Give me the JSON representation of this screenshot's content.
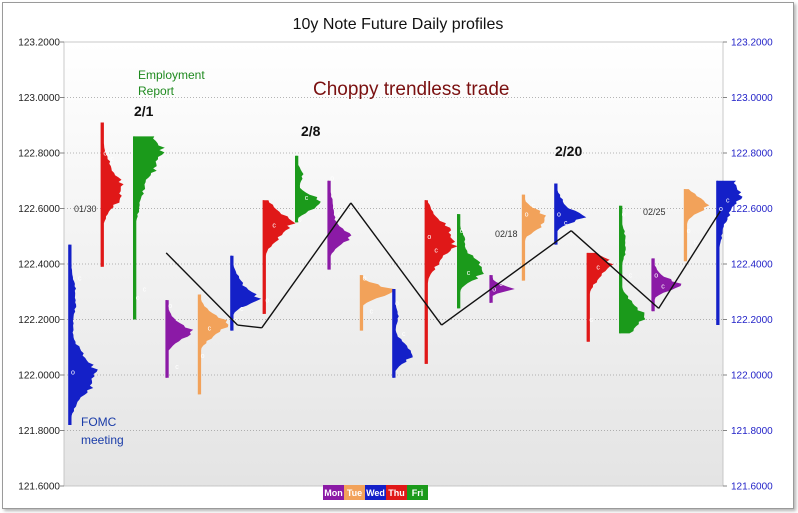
{
  "chart_data": {
    "type": "market-profile",
    "title": "10y Note Future Daily profiles",
    "ylim": [
      121.6,
      123.2
    ],
    "yticks": [
      "123.2000",
      "123.0000",
      "122.8000",
      "122.6000",
      "122.4000",
      "122.2000",
      "122.0000",
      "121.8000",
      "121.6000"
    ],
    "grid": true,
    "legend": {
      "placement": "bottom-center",
      "items": [
        {
          "label": "Mon",
          "color": "#8b1aa6"
        },
        {
          "label": "Tue",
          "color": "#f2a25a"
        },
        {
          "label": "Wed",
          "color": "#1420c8"
        },
        {
          "label": "Thu",
          "color": "#e01818"
        },
        {
          "label": "Fri",
          "color": "#1b9a1b"
        }
      ]
    },
    "profiles": [
      {
        "day": "Wed",
        "low": 121.82,
        "high": 122.47,
        "poc": 122.0,
        "width": 0.95,
        "open": 122.01,
        "close": 122.35
      },
      {
        "day": "Thu",
        "low": 122.39,
        "high": 122.91,
        "poc": 122.66,
        "width": 0.7,
        "open": 122.8,
        "close": 122.78
      },
      {
        "day": "Fri",
        "low": 122.2,
        "high": 122.86,
        "poc": 122.81,
        "width": 0.95,
        "open": 122.28,
        "close": 122.31
      },
      {
        "day": "Mon",
        "low": 121.99,
        "high": 122.27,
        "poc": 122.15,
        "width": 0.75,
        "open": 122.25,
        "close": 122.03
      },
      {
        "day": "Tue",
        "low": 121.93,
        "high": 122.29,
        "poc": 122.18,
        "width": 0.8,
        "open": 122.07,
        "close": 122.17
      },
      {
        "day": "Wed",
        "low": 122.16,
        "high": 122.43,
        "poc": 122.28,
        "width": 0.95,
        "open": 122.2,
        "close": 122.24
      },
      {
        "day": "Thu",
        "low": 122.22,
        "high": 122.63,
        "poc": 122.55,
        "width": 0.85,
        "open": 122.27,
        "close": 122.54
      },
      {
        "day": "Fri",
        "low": 122.55,
        "high": 122.79,
        "poc": 122.62,
        "width": 0.95,
        "open": 122.56,
        "close": 122.64
      },
      {
        "day": "Mon",
        "low": 122.38,
        "high": 122.7,
        "poc": 122.5,
        "width": 0.75,
        "open": 122.71,
        "close": 122.58
      },
      {
        "day": "Tue",
        "low": 122.16,
        "high": 122.36,
        "poc": 122.3,
        "width": 0.95,
        "open": 122.35,
        "close": 122.23
      },
      {
        "day": "Wed",
        "low": 121.99,
        "high": 122.31,
        "poc": 122.08,
        "width": 0.7,
        "open": 122.26,
        "close": 122.15
      },
      {
        "day": "Thu",
        "low": 122.04,
        "high": 122.63,
        "poc": 122.49,
        "width": 0.85,
        "open": 122.5,
        "close": 122.45
      },
      {
        "day": "Fri",
        "low": 122.24,
        "high": 122.58,
        "poc": 122.38,
        "width": 0.95,
        "open": 122.52,
        "close": 122.37
      },
      {
        "day": "Mon",
        "low": 122.26,
        "high": 122.36,
        "poc": 122.31,
        "width": 0.8,
        "open": 122.31,
        "close": 122.33
      },
      {
        "day": "Tue",
        "low": 122.34,
        "high": 122.65,
        "poc": 122.56,
        "width": 0.7,
        "open": 122.58,
        "close": 122.61
      },
      {
        "day": "Wed",
        "low": 122.47,
        "high": 122.69,
        "poc": 122.57,
        "width": 0.95,
        "open": 122.58,
        "close": 122.55
      },
      {
        "day": "Thu",
        "low": 122.12,
        "high": 122.44,
        "poc": 122.4,
        "width": 0.75,
        "open": 122.2,
        "close": 122.39
      },
      {
        "day": "Fri",
        "low": 122.15,
        "high": 122.61,
        "poc": 122.21,
        "width": 0.85,
        "open": 122.58,
        "close": 122.36
      },
      {
        "day": "Mon",
        "low": 122.23,
        "high": 122.42,
        "poc": 122.32,
        "width": 0.95,
        "open": 122.36,
        "close": 122.32
      },
      {
        "day": "Tue",
        "low": 122.41,
        "high": 122.67,
        "poc": 122.62,
        "width": 0.7,
        "open": 122.52,
        "close": 122.48
      },
      {
        "day": "Wed",
        "low": 122.18,
        "high": 122.7,
        "poc": 122.66,
        "width": 0.8,
        "open": 122.6,
        "close": 122.63
      }
    ],
    "trend_line": [
      {
        "x": 3.0,
        "y": 122.44
      },
      {
        "x": 5.2,
        "y": 122.18
      },
      {
        "x": 5.95,
        "y": 122.17
      },
      {
        "x": 8.7,
        "y": 122.62
      },
      {
        "x": 11.5,
        "y": 122.18
      },
      {
        "x": 15.5,
        "y": 122.52
      },
      {
        "x": 18.2,
        "y": 122.24
      },
      {
        "x": 20.1,
        "y": 122.59
      }
    ],
    "annotations": {
      "date_2_1": "2/1",
      "date_2_8": "2/8",
      "date_2_20": "2/20",
      "date_01_30": "01/30",
      "date_02_18": "02/18",
      "date_02_25": "02/25",
      "employment_line1": "Employment",
      "employment_line2": "Report",
      "fomc_line1": "FOMC",
      "fomc_line2": "meeting",
      "headline": "Choppy trendless trade"
    }
  }
}
